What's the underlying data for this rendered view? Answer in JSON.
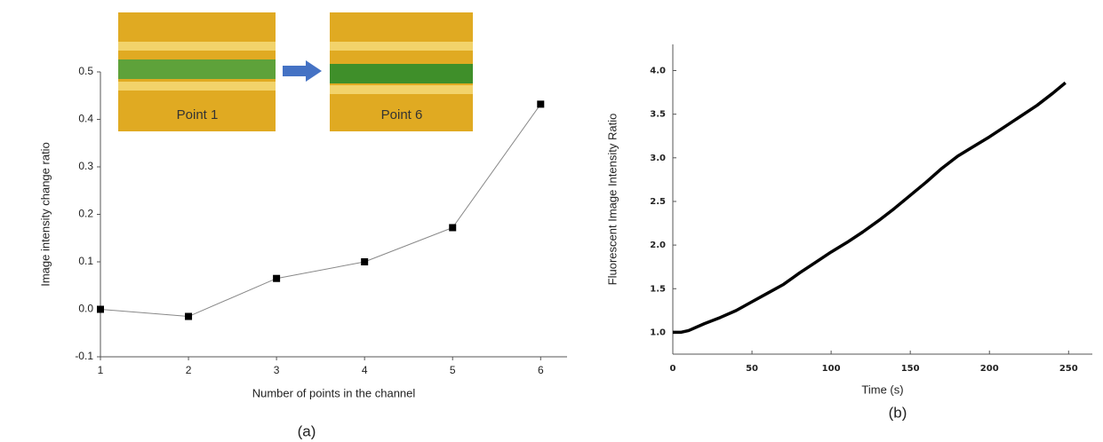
{
  "chart_data": [
    {
      "type": "line",
      "x_label": "Number of points in the channel",
      "y_label": "Image intensity change ratio",
      "caption": "(a)",
      "annotations": [
        "Point 1",
        "Point 6"
      ],
      "x": [
        1,
        2,
        3,
        4,
        5,
        6
      ],
      "values": [
        0,
        -0.015,
        0.065,
        0.1,
        0.172,
        0.432
      ],
      "color": "#888888",
      "marker_color": "#000000",
      "xlim": [
        1,
        6.3
      ],
      "xticks": [
        1,
        2,
        3,
        4,
        5,
        6
      ],
      "ylim": [
        -0.1,
        0.5
      ],
      "yticks": [
        -0.1,
        {
          "value": 0,
          "label": "0.0"
        },
        0.1,
        0.2,
        0.3,
        0.4,
        0.5
      ]
    },
    {
      "type": "line",
      "x_label": "Time (s)",
      "y_label": "Fluorescent Image Intensity Ratio",
      "caption": "(b)",
      "x": [
        0,
        5,
        10,
        20,
        30,
        40,
        50,
        60,
        70,
        80,
        90,
        100,
        110,
        120,
        130,
        140,
        150,
        160,
        170,
        180,
        190,
        200,
        210,
        220,
        230,
        240,
        248
      ],
      "values": [
        1.0,
        1.0,
        1.02,
        1.1,
        1.17,
        1.25,
        1.35,
        1.45,
        1.55,
        1.68,
        1.8,
        1.92,
        2.03,
        2.15,
        2.28,
        2.42,
        2.57,
        2.72,
        2.88,
        3.02,
        3.13,
        3.24,
        3.36,
        3.48,
        3.6,
        3.74,
        3.86
      ],
      "color": "#000000",
      "xlim": [
        0,
        265
      ],
      "xticks": [
        0,
        50,
        100,
        150,
        200,
        250
      ],
      "ylim": [
        0.75,
        4.3
      ],
      "yticks": [
        {
          "value": 1,
          "label": "1.0"
        },
        1.5,
        {
          "value": 2,
          "label": "2.0"
        },
        2.5,
        {
          "value": 3,
          "label": "3.0"
        },
        3.5,
        {
          "value": 4,
          "label": "4.0"
        }
      ]
    }
  ]
}
